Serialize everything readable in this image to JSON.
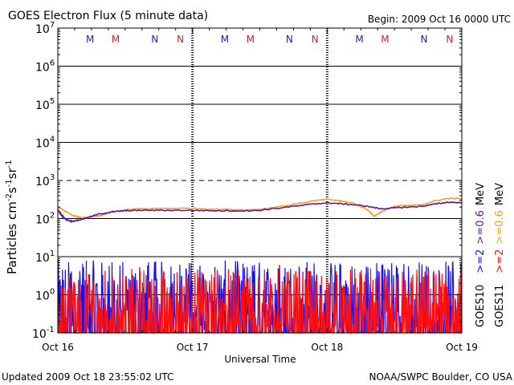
{
  "chart_data": {
    "type": "line",
    "title": "GOES Electron Flux (5 minute data)",
    "begin_label": "Begin: 2009 Oct 16 0000 UTC",
    "xlabel": "Universal Time",
    "ylabel_parts": {
      "a": "Particles cm",
      "e1": "-2",
      "b": "s",
      "e2": "-1",
      "c": "sr",
      "e3": "-1"
    },
    "yscale": "log",
    "ylim_exp": [
      -1,
      7
    ],
    "ytick_exponents": [
      "7",
      "6",
      "5",
      "4",
      "3",
      "2",
      "1",
      "0",
      "-1"
    ],
    "ytick_base": "10",
    "xlim_days": [
      0,
      3
    ],
    "xtick_labels": [
      "Oct 16",
      "Oct 17",
      "Oct 18",
      "Oct 19"
    ],
    "grid_major": [
      6,
      5,
      4,
      2,
      1,
      0
    ],
    "grid_dashed": [
      3
    ],
    "mn_markers": [
      {
        "label": "M",
        "day": 0.24,
        "color": "#2020c0"
      },
      {
        "label": "M",
        "day": 0.43,
        "color": "#d02020"
      },
      {
        "label": "N",
        "day": 0.72,
        "color": "#2020c0"
      },
      {
        "label": "N",
        "day": 0.91,
        "color": "#d02020"
      },
      {
        "label": "M",
        "day": 1.24,
        "color": "#2020c0"
      },
      {
        "label": "M",
        "day": 1.43,
        "color": "#d02020"
      },
      {
        "label": "N",
        "day": 1.72,
        "color": "#2020c0"
      },
      {
        "label": "N",
        "day": 1.91,
        "color": "#d02020"
      },
      {
        "label": "M",
        "day": 2.24,
        "color": "#2020c0"
      },
      {
        "label": "M",
        "day": 2.43,
        "color": "#d02020"
      },
      {
        "label": "N",
        "day": 2.72,
        "color": "#2020c0"
      },
      {
        "label": "N",
        "day": 2.91,
        "color": "#d02020"
      }
    ],
    "series": [
      {
        "name": "GOES10 >=0.6 MeV",
        "color": "#5a1aa0",
        "x": [
          0,
          0.03,
          0.06,
          0.1,
          0.15,
          0.2,
          0.3,
          0.4,
          0.5,
          0.6,
          0.8,
          1.0,
          1.2,
          1.4,
          1.5,
          1.7,
          1.9,
          2.0,
          2.1,
          2.2,
          2.3,
          2.4,
          2.5,
          2.6,
          2.7,
          2.8,
          2.9,
          3.0
        ],
        "y": [
          170,
          120,
          95,
          85,
          90,
          100,
          130,
          150,
          160,
          165,
          165,
          165,
          160,
          160,
          165,
          200,
          240,
          260,
          245,
          230,
          210,
          180,
          190,
          200,
          210,
          240,
          270,
          260
        ]
      },
      {
        "name": "GOES11 >=0.6 MeV",
        "color": "#f0a020",
        "x": [
          0,
          0.05,
          0.1,
          0.15,
          0.2,
          0.3,
          0.4,
          0.5,
          0.6,
          0.8,
          1.0,
          1.2,
          1.4,
          1.5,
          1.7,
          1.9,
          2.0,
          2.1,
          2.2,
          2.3,
          2.35,
          2.4,
          2.5,
          2.6,
          2.7,
          2.8,
          2.9,
          3.0
        ],
        "y": [
          200,
          160,
          125,
          110,
          105,
          115,
          145,
          170,
          180,
          185,
          185,
          175,
          170,
          175,
          220,
          290,
          320,
          290,
          250,
          170,
          115,
          150,
          210,
          220,
          230,
          290,
          340,
          330
        ]
      },
      {
        "name": "GOES10 >=2 MeV",
        "color": "#1010ff",
        "style": "noisy",
        "range": [
          0.1,
          8
        ]
      },
      {
        "name": "GOES11 >=2 MeV",
        "color": "#ff1010",
        "style": "noisy",
        "range": [
          0.1,
          5
        ]
      }
    ],
    "legend": [
      {
        "label": "GOES10",
        "color": "#000000"
      },
      {
        "label": ">=2",
        "color": "#1010ff"
      },
      {
        "label": ">=0.6",
        "color": "#5a1aa0"
      },
      {
        "label": "MeV",
        "color": "#000000"
      },
      {
        "label": "GOES11",
        "color": "#000000"
      },
      {
        "label": ">=2",
        "color": "#ff1010"
      },
      {
        "label": ">=0.6",
        "color": "#f0a020"
      },
      {
        "label": "MeV",
        "color": "#000000"
      }
    ]
  },
  "footer": {
    "updated": "Updated 2009 Oct 18 23:55:02 UTC",
    "credit": "NOAA/SWPC Boulder, CO USA"
  }
}
